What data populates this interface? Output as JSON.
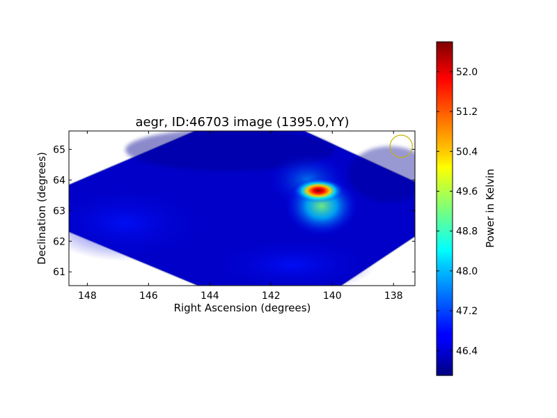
{
  "chart_data": [
    {
      "type": "heatmap",
      "title": "aegr, ID:46703 image (1395.0,YY)",
      "xlabel": "Right Ascension (degrees)",
      "ylabel": "Declination (degrees)",
      "xlim": [
        148.6,
        137.3
      ],
      "ylim": [
        60.55,
        65.6
      ],
      "x_ticks": [
        148,
        146,
        144,
        142,
        140,
        138
      ],
      "y_ticks": [
        61,
        62,
        63,
        64,
        65
      ],
      "x_tick_labels": [
        "148",
        "146",
        "144",
        "142",
        "140",
        "138"
      ],
      "y_tick_labels": [
        "61",
        "62",
        "63",
        "64",
        "65"
      ],
      "grid": false,
      "footprint_polygon": [
        {
          "ra": 144.5,
          "dec": 65.6
        },
        {
          "ra": 140.9,
          "dec": 65.6
        },
        {
          "ra": 137.3,
          "dec": 63.95
        },
        {
          "ra": 137.3,
          "dec": 62.15
        },
        {
          "ra": 139.7,
          "dec": 60.55
        },
        {
          "ra": 144.4,
          "dec": 60.55
        },
        {
          "ra": 148.6,
          "dec": 62.3
        },
        {
          "ra": 148.6,
          "dec": 63.85
        }
      ],
      "sources": [
        {
          "ra": 140.45,
          "dec": 63.65,
          "peak": 52.5,
          "width_ra": 0.38,
          "width_dec": 0.18
        },
        {
          "ra": 140.35,
          "dec": 63.15,
          "peak": 48.6,
          "width_ra": 0.55,
          "width_dec": 0.45
        },
        {
          "ra": 140.8,
          "dec": 64.0,
          "peak": 47.6,
          "width_ra": 0.6,
          "width_dec": 0.4
        }
      ],
      "background_level": 46.3,
      "beam_marker": {
        "ra": 137.75,
        "dec": 65.1,
        "color": "#c8b400"
      }
    },
    {
      "type": "colorbar",
      "label": "Power in Kelvin",
      "range": [
        45.9,
        52.6
      ],
      "ticks": [
        46.4,
        47.2,
        48.0,
        48.8,
        49.6,
        50.4,
        51.2,
        52.0
      ],
      "tick_labels": [
        "46.4",
        "47.2",
        "48.0",
        "48.8",
        "49.6",
        "50.4",
        "51.2",
        "52.0"
      ],
      "colormap": "jet"
    }
  ]
}
